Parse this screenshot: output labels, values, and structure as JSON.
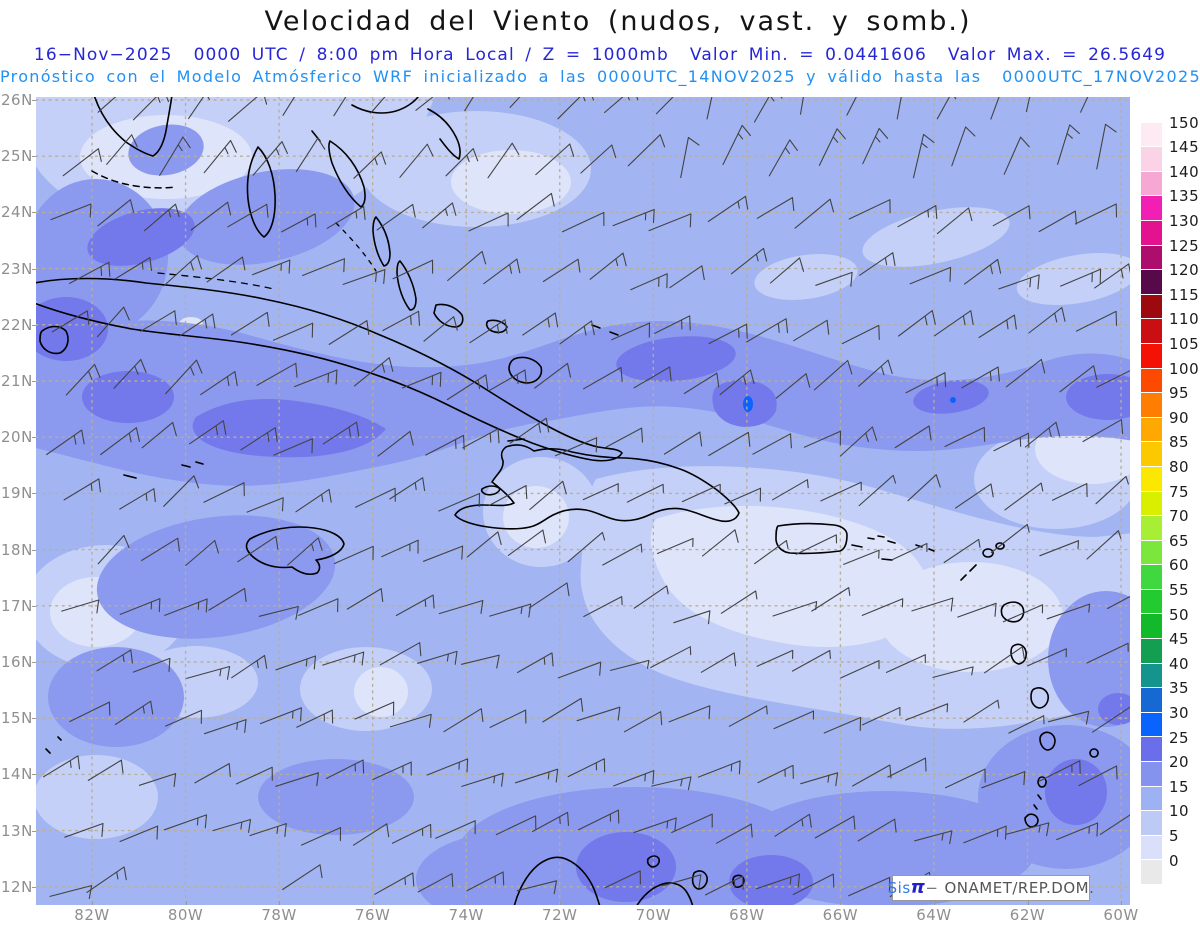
{
  "header": {
    "title": "Velocidad del Viento (nudos, vast. y somb.)",
    "subtitle1": "16−Nov−2025  0000 UTC / 8:00 pm Hora Local / Z = 1000mb  Valor Min. = 0.0441606  Valor Max. = 26.5649",
    "subtitle2": "Pronóstico con el Modelo Atmósferico WRF inicializado a las 0000UTC_14NOV2025 y válido hasta las  0000UTC_17NOV2025",
    "subtitle1_color": "#2626d6",
    "subtitle2_color": "#2191f5"
  },
  "map": {
    "lat_labels": [
      "26N",
      "25N",
      "24N",
      "23N",
      "22N",
      "21N",
      "20N",
      "19N",
      "18N",
      "17N",
      "16N",
      "15N",
      "14N",
      "13N",
      "12N"
    ],
    "lon_labels": [
      "82W",
      "80W",
      "78W",
      "76W",
      "74W",
      "72W",
      "70W",
      "68W",
      "66W",
      "64W",
      "62W",
      "60W"
    ],
    "grid_color": "#b9ae97",
    "coast_color": "#000000",
    "barb_color": "#434343",
    "field_levels": [
      {
        "range_knots": "0-5",
        "color": "#dee4fa"
      },
      {
        "range_knots": "5-10",
        "color": "#c4d0f7"
      },
      {
        "range_knots": "10-15",
        "color": "#a2b5f2"
      },
      {
        "range_knots": "15-20",
        "color": "#8b99ee"
      },
      {
        "range_knots": "20-25",
        "color": "#7379ea"
      },
      {
        "range_knots": "25-30",
        "color": "#0b63fe"
      }
    ]
  },
  "wind_field": {
    "symbol": "wind-barb",
    "predominant_flow": "easterly trade winds",
    "rows": 15,
    "cols": 23
  },
  "colorbar": {
    "unit": "nudos",
    "labels_top_to_bottom": [
      "150",
      "145",
      "140",
      "135",
      "130",
      "125",
      "120",
      "115",
      "110",
      "105",
      "100",
      "95",
      "90",
      "85",
      "80",
      "75",
      "70",
      "65",
      "60",
      "55",
      "50",
      "45",
      "40",
      "35",
      "30",
      "25",
      "20",
      "15",
      "10",
      "5",
      "0"
    ],
    "segment_colors_top_to_bottom": [
      "#ffffff",
      "#fdeaf3",
      "#fbd3e7",
      "#f7a8d2",
      "#f11fb4",
      "#e5128f",
      "#ad0e6e",
      "#570949",
      "#9c0a0f",
      "#cb0e11",
      "#f41207",
      "#fe4a00",
      "#ff7d00",
      "#ffa702",
      "#fcc800",
      "#fbe800",
      "#d8f000",
      "#a8ee35",
      "#7ce63c",
      "#3fd93f",
      "#22cb30",
      "#12ba29",
      "#149e52",
      "#15948e",
      "#1668d2",
      "#0b63fe",
      "#6b6eea",
      "#8593ee",
      "#9db2f2",
      "#bdcaf6",
      "#dae0fa",
      "#e9e9e9"
    ]
  },
  "watermark": {
    "brand_prefix": "Sis",
    "brand_pi": "π",
    "separator": "−",
    "org": "ONAMET/REP.DOM."
  }
}
